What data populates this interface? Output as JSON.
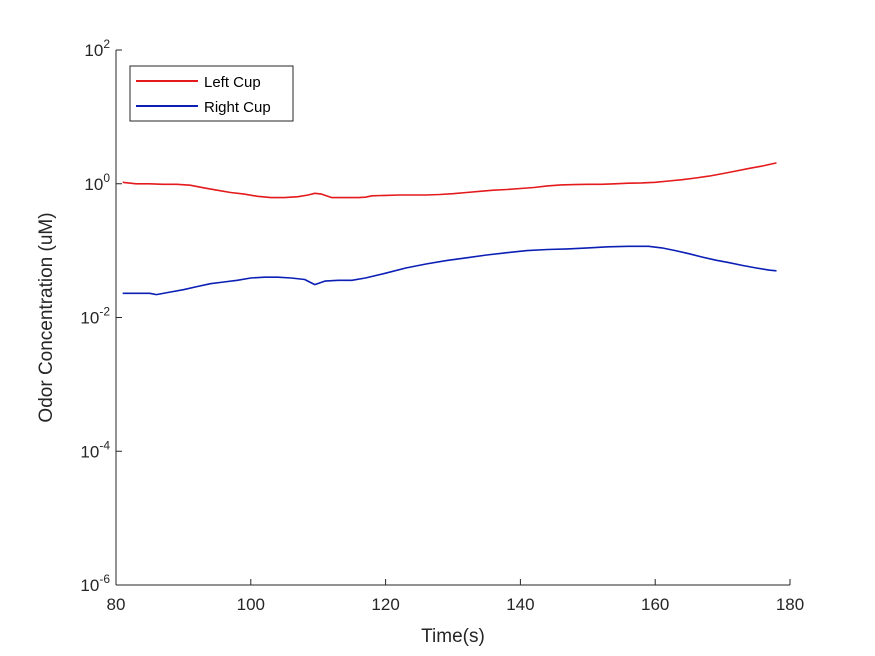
{
  "chart_data": {
    "type": "line",
    "title": "",
    "xlabel": "Time(s)",
    "ylabel": "Odor Concentration (uM)",
    "xlim": [
      80,
      180
    ],
    "ylim": [
      1e-06,
      100
    ],
    "y_scale": "log",
    "grid": false,
    "legend_position": "top-left",
    "x_ticks": [
      "80",
      "100",
      "120",
      "140",
      "160",
      "180"
    ],
    "y_ticks": [
      {
        "base": "10",
        "exp": "-6"
      },
      {
        "base": "10",
        "exp": "-4"
      },
      {
        "base": "10",
        "exp": "-2"
      },
      {
        "base": "10",
        "exp": "0"
      },
      {
        "base": "10",
        "exp": "2"
      }
    ],
    "series": [
      {
        "name": "Left Cup",
        "color": "#e41a1c",
        "x": [
          81,
          83,
          85,
          87,
          89,
          91,
          93,
          95,
          97,
          99,
          101,
          103,
          105,
          107,
          108.5,
          109.5,
          110.5,
          112,
          114,
          116,
          117,
          118,
          120,
          122,
          124,
          126,
          128,
          130,
          132,
          134,
          136,
          138,
          140,
          142,
          144,
          146,
          148,
          150,
          152,
          154,
          156,
          158,
          160,
          162,
          164,
          166,
          168,
          170,
          172,
          174,
          176,
          178
        ],
        "y": [
          1.05,
          1.0,
          1.0,
          0.98,
          0.98,
          0.95,
          0.87,
          0.8,
          0.74,
          0.7,
          0.65,
          0.62,
          0.62,
          0.64,
          0.68,
          0.72,
          0.7,
          0.62,
          0.62,
          0.62,
          0.63,
          0.66,
          0.67,
          0.68,
          0.68,
          0.68,
          0.69,
          0.71,
          0.74,
          0.77,
          0.8,
          0.82,
          0.85,
          0.88,
          0.93,
          0.96,
          0.97,
          0.98,
          0.98,
          1.0,
          1.02,
          1.03,
          1.05,
          1.1,
          1.15,
          1.22,
          1.3,
          1.42,
          1.55,
          1.7,
          1.85,
          2.05
        ]
      },
      {
        "name": "Right Cup",
        "color": "#0b1fb5",
        "x": [
          81,
          83,
          85,
          86,
          88,
          90,
          92,
          94,
          96,
          98,
          100,
          102,
          104,
          106,
          108,
          109.5,
          111,
          113,
          115,
          117,
          120,
          123,
          126,
          129,
          132,
          135,
          138,
          141,
          144,
          147,
          150,
          153,
          156,
          159,
          161,
          163,
          165,
          167,
          169,
          171,
          173,
          175,
          177,
          178
        ],
        "y": [
          0.023,
          0.023,
          0.023,
          0.022,
          0.024,
          0.026,
          0.029,
          0.032,
          0.034,
          0.036,
          0.039,
          0.04,
          0.04,
          0.039,
          0.037,
          0.031,
          0.035,
          0.036,
          0.036,
          0.039,
          0.046,
          0.055,
          0.063,
          0.071,
          0.078,
          0.086,
          0.093,
          0.1,
          0.104,
          0.106,
          0.11,
          0.114,
          0.116,
          0.116,
          0.11,
          0.1,
          0.09,
          0.08,
          0.072,
          0.066,
          0.06,
          0.055,
          0.051,
          0.05
        ]
      }
    ]
  }
}
